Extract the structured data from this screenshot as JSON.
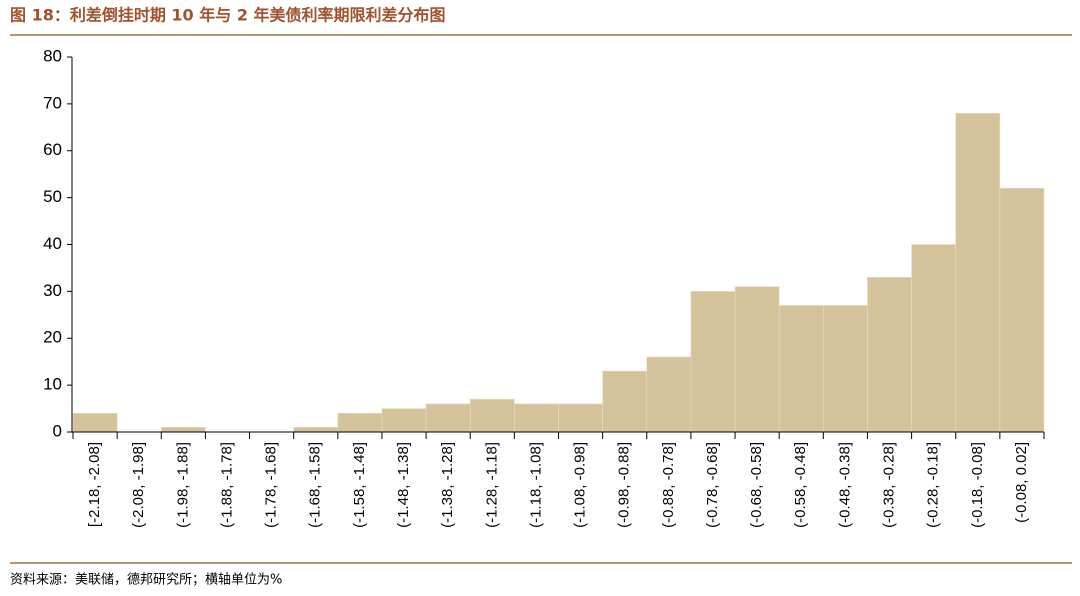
{
  "chart_data": {
    "type": "bar",
    "title": "图 18：利差倒挂时期 10 年与 2 年美债利率期限利差分布图",
    "source": "资料来源：美联储，德邦研究所；横轴单位为%",
    "categories": [
      "[-2.18, -2.08]",
      "(-2.08, -1.98]",
      "(-1.98, -1.88]",
      "(-1.88, -1.78]",
      "(-1.78, -1.68]",
      "(-1.68, -1.58]",
      "(-1.58, -1.48]",
      "(-1.48, -1.38]",
      "(-1.38, -1.28]",
      "(-1.28, -1.18]",
      "(-1.18, -1.08]",
      "(-1.08, -0.98]",
      "(-0.98, -0.88]",
      "(-0.88, -0.78]",
      "(-0.78, -0.68]",
      "(-0.68, -0.58]",
      "(-0.58, -0.48]",
      "(-0.48, -0.38]",
      "(-0.38, -0.28]",
      "(-0.28, -0.18]",
      "(-0.18, -0.08]",
      "(-0.08, 0.02]"
    ],
    "values": [
      4,
      0,
      1,
      0,
      0,
      1,
      4,
      5,
      6,
      7,
      6,
      6,
      13,
      16,
      30,
      31,
      27,
      27,
      33,
      40,
      68,
      52
    ],
    "color": "#d4c29b",
    "ylim": [
      0,
      80
    ],
    "yticks": [
      0,
      10,
      20,
      30,
      40,
      50,
      60,
      70,
      80
    ],
    "grid": false
  }
}
